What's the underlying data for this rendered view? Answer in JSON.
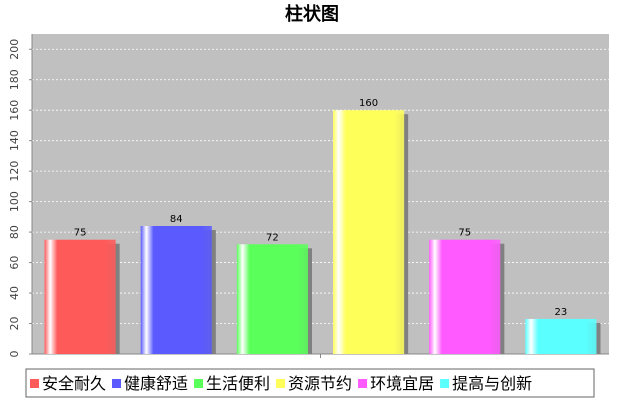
{
  "chart_data": {
    "type": "bar",
    "title": "柱状图",
    "categories": [
      "安全耐久",
      "健康舒适",
      "生活便利",
      "资源节约",
      "环境宜居",
      "提高与创新"
    ],
    "values": [
      75,
      84,
      72,
      160,
      75,
      23
    ],
    "colors": [
      "#ff5a5a",
      "#5a5aff",
      "#5aff5a",
      "#ffff5a",
      "#ff5aff",
      "#5affff"
    ],
    "ylim": [
      0,
      210
    ],
    "yticks": [
      0,
      20,
      40,
      60,
      80,
      100,
      120,
      140,
      160,
      180,
      200
    ],
    "grid": true,
    "plot_background": "#c0c0c0",
    "legend_position": "bottom",
    "show_data_labels": true
  }
}
